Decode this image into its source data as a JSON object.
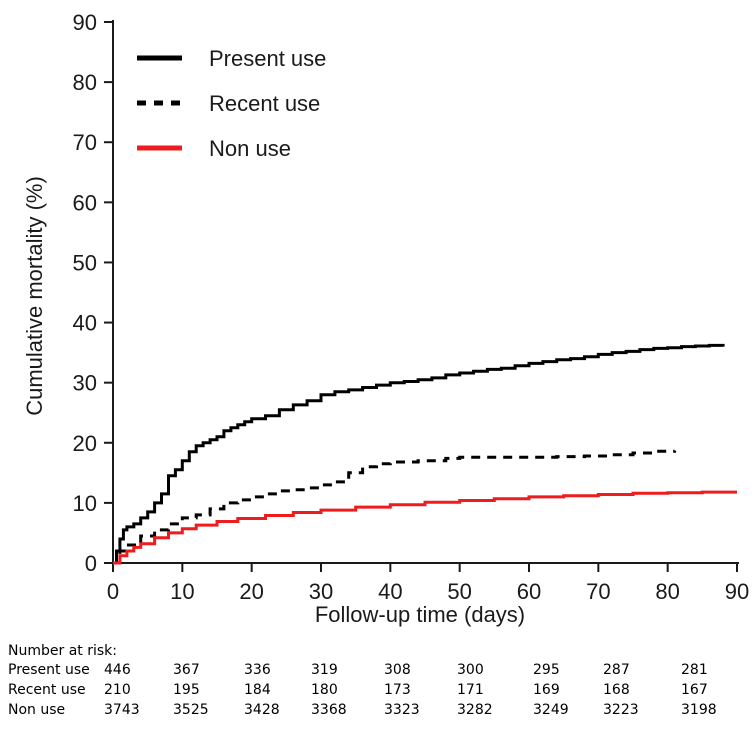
{
  "chart_data": {
    "type": "line",
    "step": true,
    "xlabel": "Follow-up time (days)",
    "ylabel": "Cumulative mortality (%)",
    "xlim": [
      0,
      90
    ],
    "ylim": [
      0,
      90
    ],
    "xticks": [
      0,
      10,
      20,
      30,
      40,
      50,
      60,
      70,
      80,
      90
    ],
    "yticks": [
      0,
      10,
      20,
      30,
      40,
      50,
      60,
      70,
      80,
      90
    ],
    "grid": false,
    "legend_position": "top-left",
    "series": [
      {
        "name": "Present use",
        "color": "#000000",
        "style": "solid",
        "x": [
          0,
          0.5,
          1,
          1.5,
          2,
          3,
          4,
          5,
          6,
          7,
          8,
          9,
          10,
          11,
          12,
          13,
          14,
          15,
          16,
          17,
          18,
          19,
          20,
          22,
          24,
          26,
          28,
          30,
          32,
          34,
          36,
          38,
          40,
          42,
          44,
          46,
          48,
          50,
          52,
          54,
          56,
          58,
          60,
          62,
          64,
          66,
          68,
          70,
          72,
          74,
          76,
          78,
          80,
          82,
          84,
          86,
          88
        ],
        "y": [
          0,
          2.0,
          4.0,
          5.5,
          6.0,
          6.5,
          7.5,
          8.5,
          10.0,
          11.5,
          14.5,
          15.5,
          17.0,
          18.5,
          19.5,
          20.0,
          20.5,
          21.0,
          22.0,
          22.5,
          23.0,
          23.5,
          24.0,
          24.5,
          25.5,
          26.3,
          27.0,
          28.0,
          28.5,
          28.8,
          29.2,
          29.6,
          30.0,
          30.2,
          30.5,
          30.8,
          31.3,
          31.6,
          31.9,
          32.2,
          32.4,
          32.8,
          33.2,
          33.5,
          33.8,
          34.0,
          34.3,
          34.7,
          35.0,
          35.2,
          35.5,
          35.7,
          35.8,
          36.0,
          36.1,
          36.2,
          36.0
        ]
      },
      {
        "name": "Recent use",
        "color": "#000000",
        "style": "dashed",
        "x": [
          0,
          1,
          2,
          4,
          6,
          8,
          10,
          12,
          14,
          16,
          18,
          20,
          22,
          24,
          26,
          28,
          30,
          32,
          34,
          36,
          38,
          40,
          44,
          48,
          50,
          56,
          60,
          64,
          68,
          72,
          75,
          78,
          81
        ],
        "y": [
          0,
          2.0,
          3.0,
          4.5,
          5.5,
          6.5,
          7.5,
          8.0,
          9.0,
          10.0,
          10.5,
          11.0,
          11.5,
          12.0,
          12.2,
          12.5,
          13.0,
          13.5,
          15.0,
          16.0,
          16.5,
          16.8,
          17.0,
          17.4,
          17.6,
          17.6,
          17.6,
          17.7,
          17.8,
          18.0,
          18.3,
          18.6,
          18.7
        ]
      },
      {
        "name": "Non use",
        "color": "#ee1c1c",
        "style": "solid",
        "x": [
          0,
          1,
          2,
          3,
          4,
          6,
          8,
          10,
          12,
          15,
          18,
          22,
          26,
          30,
          35,
          40,
          45,
          50,
          55,
          60,
          65,
          70,
          75,
          80,
          85,
          90
        ],
        "y": [
          0,
          1.2,
          2.0,
          2.6,
          3.2,
          4.2,
          5.0,
          5.7,
          6.3,
          6.9,
          7.4,
          7.9,
          8.4,
          8.8,
          9.3,
          9.7,
          10.1,
          10.4,
          10.7,
          11.0,
          11.2,
          11.4,
          11.6,
          11.7,
          11.8,
          11.8
        ]
      }
    ],
    "risk_table": {
      "title": "Number at risk:",
      "rows": [
        {
          "label": "Present use",
          "values": [
            "446",
            "367",
            "336",
            "319",
            "308",
            "300",
            "295",
            "287",
            "281"
          ]
        },
        {
          "label": "Recent use",
          "values": [
            "210",
            "195",
            "184",
            "180",
            "173",
            "171",
            "169",
            "168",
            "167"
          ]
        },
        {
          "label": "Non use",
          "values": [
            "3743",
            "3525",
            "3428",
            "3368",
            "3323",
            "3282",
            "3249",
            "3223",
            "3198"
          ]
        }
      ]
    }
  }
}
